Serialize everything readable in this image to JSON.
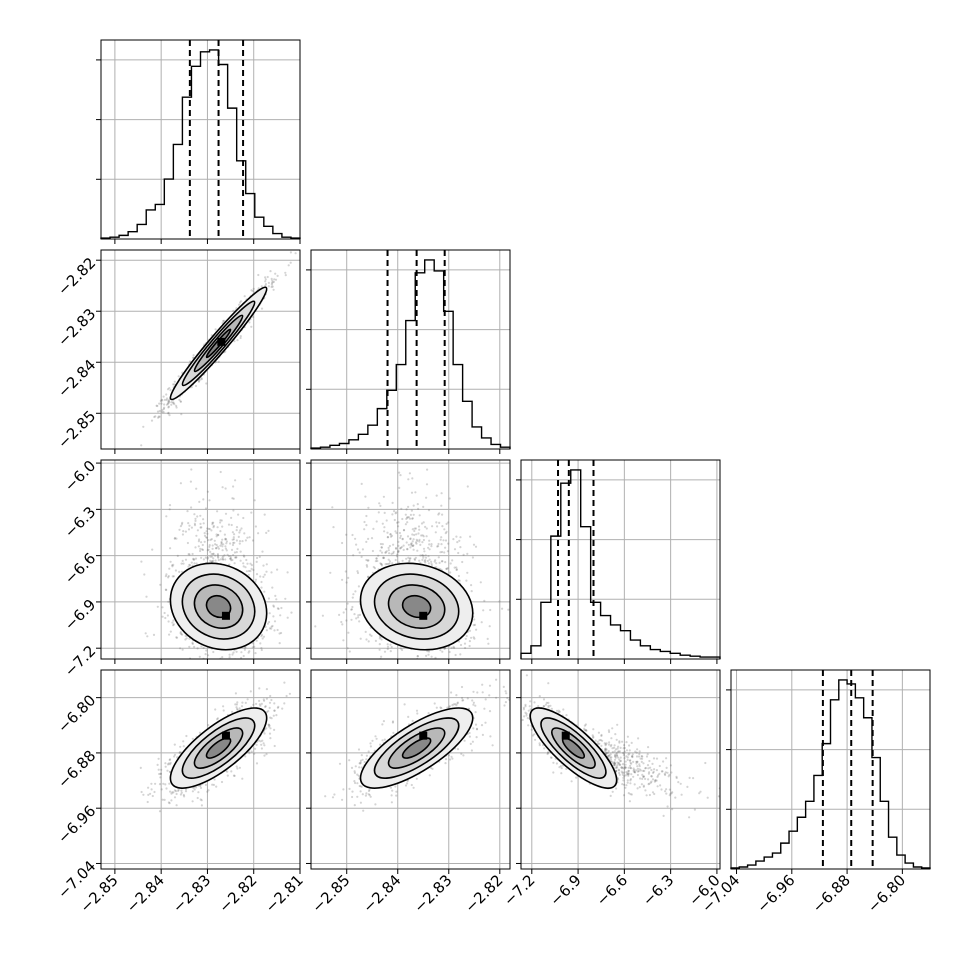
{
  "chart_data": {
    "type": "corner",
    "title": "",
    "grid": true,
    "n_params": 4,
    "axis_labels": [
      "",
      "",
      "",
      ""
    ],
    "params": [
      {
        "index": 0,
        "range": [
          -2.853,
          -2.81
        ],
        "ticks": [
          -2.85,
          -2.84,
          -2.83,
          -2.82,
          -2.81
        ],
        "tick_labels": [
          "−2.85",
          "−2.84",
          "−2.83",
          "−2.82",
          "−2.81"
        ],
        "quantiles": [
          -2.8338,
          -2.8276,
          -2.8223
        ],
        "hist_values": [
          0.5,
          1,
          2,
          4,
          8,
          16,
          19,
          33,
          52,
          78,
          95,
          103,
          104,
          96,
          72,
          43,
          25,
          12,
          7,
          3,
          1,
          0.5
        ]
      },
      {
        "index": 1,
        "range": [
          -2.857,
          -2.818
        ],
        "ticks": [
          -2.85,
          -2.84,
          -2.83,
          -2.82
        ],
        "tick_labels": [
          "−2.85",
          "−2.84",
          "−2.83",
          "−2.82"
        ],
        "quantiles": [
          -2.842,
          -2.8363,
          -2.8308
        ],
        "hist_values": [
          0.5,
          1,
          2,
          3,
          5,
          8,
          13,
          22,
          32,
          46,
          70,
          96,
          103,
          97,
          75,
          46,
          26,
          12,
          6,
          2.5,
          1
        ]
      },
      {
        "index": 2,
        "range": [
          -7.27,
          -5.98
        ],
        "ticks": [
          -7.2,
          -6.9,
          -6.6,
          -6.3,
          -6.0
        ],
        "tick_labels": [
          "−7.2",
          "−6.9",
          "−6.6",
          "−6.3",
          "−6.0"
        ],
        "quantiles": [
          -7.03,
          -6.96,
          -6.8
        ],
        "hist_values": [
          3,
          7,
          30,
          65,
          93,
          100,
          70,
          30,
          23,
          18,
          15,
          10,
          7,
          5,
          4,
          3,
          2,
          1.5,
          1,
          1
        ]
      },
      {
        "index": 3,
        "range": [
          -7.048,
          -6.76
        ],
        "ticks": [
          -7.04,
          -6.96,
          -6.88,
          -6.8
        ],
        "tick_labels": [
          "−7.04",
          "−6.96",
          "−6.88",
          "−6.80"
        ],
        "quantiles": [
          -6.915,
          -6.874,
          -6.843
        ],
        "hist_values": [
          0.5,
          1,
          2,
          4,
          6,
          8,
          13,
          19,
          26,
          34,
          47,
          63,
          85,
          95,
          93,
          86,
          76,
          56,
          34,
          16,
          7,
          3,
          1,
          0.5
        ]
      }
    ],
    "pairs": [
      {
        "row": 1,
        "col": 0,
        "mean": [
          -2.8276,
          -2.8363
        ],
        "sd": [
          0.0052,
          0.0055
        ],
        "rho": 0.97,
        "peak": [
          -2.827,
          -2.836
        ]
      },
      {
        "row": 2,
        "col": 0,
        "mean": [
          -2.8276,
          -6.93
        ],
        "sd": [
          0.0052,
          0.14
        ],
        "rho": -0.15,
        "peak": [
          -2.826,
          -6.99
        ]
      },
      {
        "row": 2,
        "col": 1,
        "mean": [
          -2.8363,
          -6.93
        ],
        "sd": [
          0.0055,
          0.14
        ],
        "rho": -0.15,
        "peak": [
          -2.835,
          -6.99
        ]
      },
      {
        "row": 3,
        "col": 0,
        "mean": [
          -2.8276,
          -6.873
        ],
        "sd": [
          0.0052,
          0.029
        ],
        "rho": 0.75,
        "peak": [
          -2.826,
          -6.855
        ]
      },
      {
        "row": 3,
        "col": 1,
        "mean": [
          -2.8363,
          -6.873
        ],
        "sd": [
          0.0055,
          0.029
        ],
        "rho": 0.75,
        "peak": [
          -2.835,
          -6.855
        ]
      },
      {
        "row": 3,
        "col": 2,
        "mean": [
          -6.93,
          -6.873
        ],
        "sd": [
          0.14,
          0.029
        ],
        "rho": -0.8,
        "peak": [
          -6.98,
          -6.855
        ]
      }
    ]
  }
}
